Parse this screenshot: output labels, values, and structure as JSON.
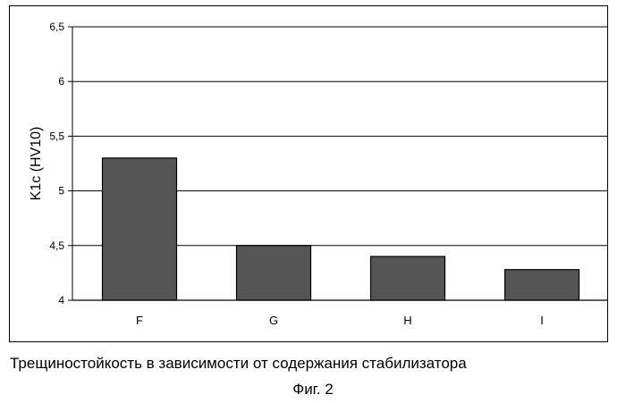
{
  "chart_data": {
    "type": "bar",
    "categories": [
      "F",
      "G",
      "H",
      "I"
    ],
    "values": [
      5.3,
      4.5,
      4.4,
      4.28
    ],
    "ylabel": "K1c (HV10)",
    "xlabel": "",
    "ylim": [
      4,
      6.5
    ],
    "yticks": [
      "4",
      "4,5",
      "5",
      "5,5",
      "6",
      "6,5"
    ],
    "ytick_values": [
      4,
      4.5,
      5,
      5.5,
      6,
      6.5
    ],
    "grid": true,
    "legend": "none",
    "bar_color": "#555555",
    "grid_color": "#000000"
  },
  "caption": "Трещиностойкость в зависимости от содержания стабилизатора",
  "figure_label": "Фиг. 2"
}
